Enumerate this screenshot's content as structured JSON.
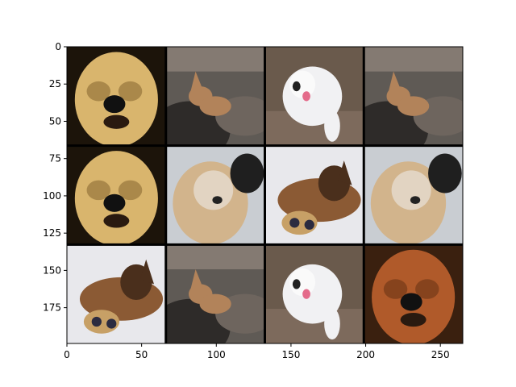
{
  "figure": {
    "xlim": [
      0,
      265
    ],
    "ylim": [
      199,
      0
    ],
    "x_ticks": [
      0,
      50,
      100,
      150,
      200,
      250
    ],
    "y_ticks": [
      0,
      25,
      50,
      75,
      100,
      125,
      150,
      175
    ],
    "grid": {
      "rows": 3,
      "cols": 4
    },
    "tiles": [
      {
        "row": 0,
        "col": 0,
        "subject": "cream-fluffy-dog-closeup",
        "bg": "#1c140a",
        "coat": "#d9b56d",
        "shade": "#8a6a33"
      },
      {
        "row": 0,
        "col": 1,
        "subject": "small-tan-dog-on-rocks",
        "bg": "#5f5a55",
        "coat": "#b2835a",
        "shade": "#2e2b29"
      },
      {
        "row": 0,
        "col": 2,
        "subject": "white-fluffy-dog-walking",
        "bg": "#6a5a4c",
        "coat": "#f1f1f3",
        "shade": "#b8b4ae"
      },
      {
        "row": 0,
        "col": 3,
        "subject": "small-tan-dog-on-rocks",
        "bg": "#5f5a55",
        "coat": "#b2835a",
        "shade": "#2e2b29"
      },
      {
        "row": 1,
        "col": 0,
        "subject": "cream-fluffy-dog-closeup",
        "bg": "#1c140a",
        "coat": "#d9b56d",
        "shade": "#8a6a33"
      },
      {
        "row": 1,
        "col": 1,
        "subject": "fluffy-dog-black-ear",
        "bg": "#c9cdd2",
        "coat": "#d2b48c",
        "shade": "#1f1f1f"
      },
      {
        "row": 1,
        "col": 2,
        "subject": "brown-dog-with-puppy",
        "bg": "#e8e8ec",
        "coat": "#8b5a34",
        "shade": "#4a2f1c"
      },
      {
        "row": 1,
        "col": 3,
        "subject": "fluffy-dog-black-ear",
        "bg": "#c9cdd2",
        "coat": "#d2b48c",
        "shade": "#1f1f1f"
      },
      {
        "row": 2,
        "col": 0,
        "subject": "brown-dog-with-puppy",
        "bg": "#e8e8ec",
        "coat": "#8b5a34",
        "shade": "#4a2f1c"
      },
      {
        "row": 2,
        "col": 1,
        "subject": "small-tan-dog-on-rocks",
        "bg": "#5f5a55",
        "coat": "#b2835a",
        "shade": "#2e2b29"
      },
      {
        "row": 2,
        "col": 2,
        "subject": "white-fluffy-dog-walking",
        "bg": "#6a5a4c",
        "coat": "#f1f1f3",
        "shade": "#b8b4ae"
      },
      {
        "row": 2,
        "col": 3,
        "subject": "brown-fluffy-dog-closeup",
        "bg": "#3a200f",
        "coat": "#b05a2a",
        "shade": "#6b3316"
      }
    ]
  }
}
